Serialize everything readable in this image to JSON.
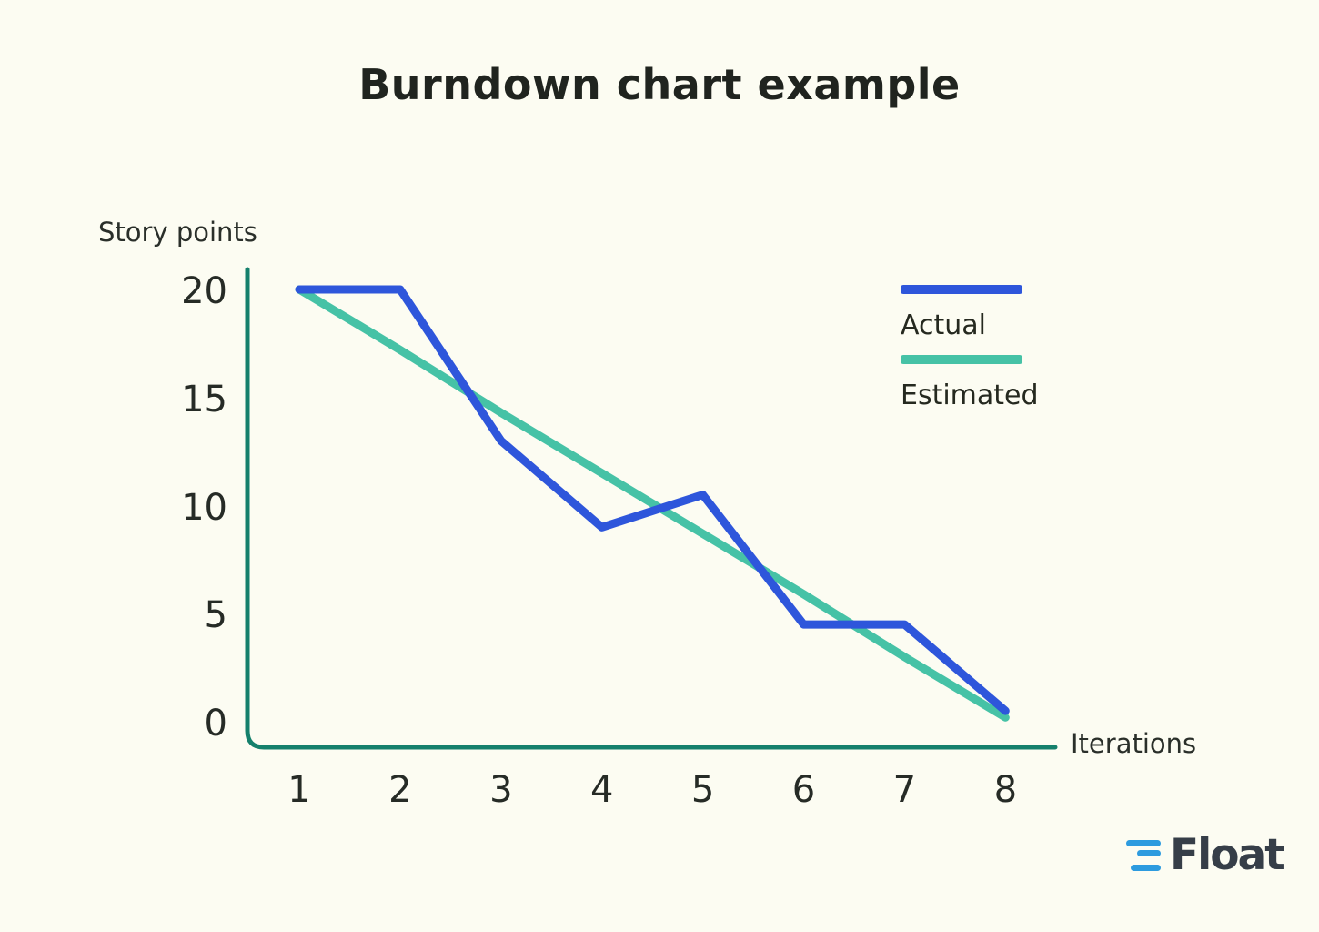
{
  "title": "Burndown chart example",
  "chart_data": {
    "type": "line",
    "title": "Burndown chart example",
    "xlabel": "Iterations",
    "ylabel": "Story points",
    "x": [
      1,
      2,
      3,
      4,
      5,
      6,
      7,
      8
    ],
    "xtick_labels": [
      "1",
      "2",
      "3",
      "4",
      "5",
      "6",
      "7",
      "8"
    ],
    "yticks": [
      20,
      15,
      10,
      5,
      0
    ],
    "ylim": [
      0,
      21
    ],
    "grid": false,
    "legend_position": "top-right",
    "axis_color": "#15806C",
    "series": [
      {
        "name": "Actual",
        "color": "#2E56DB",
        "values": [
          20,
          20,
          13,
          9,
          10.5,
          4.5,
          4.5,
          0.5
        ]
      },
      {
        "name": "Estimated",
        "color": "#46C2A6",
        "values": [
          20,
          17.2,
          14.3,
          11.5,
          8.7,
          5.9,
          3,
          0.2
        ]
      }
    ]
  },
  "legend": {
    "items": [
      {
        "label": "Actual",
        "color": "#2E56DB"
      },
      {
        "label": "Estimated",
        "color": "#46C2A6"
      }
    ]
  },
  "branding": {
    "name": "Float",
    "text_color": "#363E48",
    "mark_color": "#2D9BDF"
  },
  "colors": {
    "background": "#FCFCF2",
    "text": "#232823"
  }
}
